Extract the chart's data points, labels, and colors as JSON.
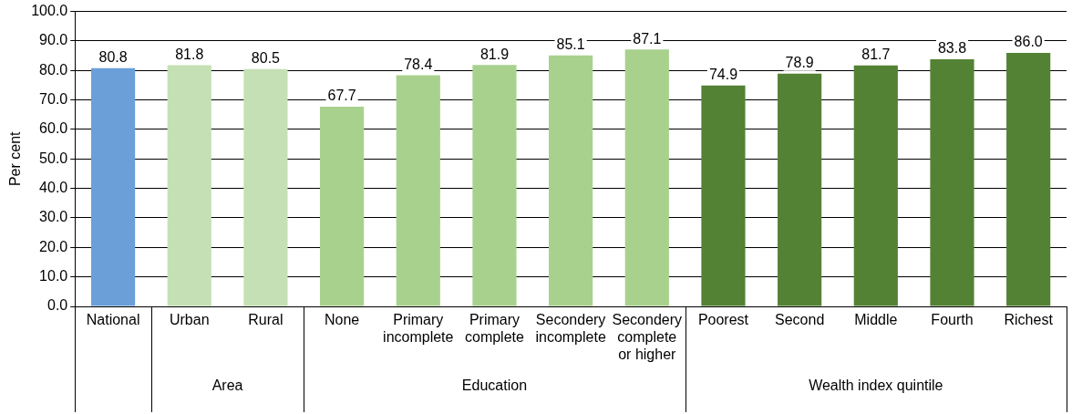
{
  "chart_data": {
    "type": "bar",
    "ylabel": "Per cent",
    "categories": [
      "National",
      "Urban",
      "Rural",
      "None",
      "Primary incomplete",
      "Primary complete",
      "Secondery incomplete",
      "Secondery complete or higher",
      "Poorest",
      "Second",
      "Middle",
      "Fourth",
      "Richest"
    ],
    "values": [
      80.8,
      81.8,
      80.5,
      67.7,
      78.4,
      81.9,
      85.1,
      87.1,
      74.9,
      78.9,
      81.7,
      83.8,
      86.0
    ],
    "value_labels": [
      "80.8",
      "81.8",
      "80.5",
      "67.7",
      "78.4",
      "81.9",
      "85.1",
      "87.1",
      "74.9",
      "78.9",
      "81.7",
      "83.8",
      "86.0"
    ],
    "colors": [
      "#6a9fd8",
      "#c5e0b4",
      "#c5e0b4",
      "#a9d18e",
      "#a9d18e",
      "#a9d18e",
      "#a9d18e",
      "#a9d18e",
      "#548235",
      "#548235",
      "#548235",
      "#548235",
      "#548235"
    ],
    "ylim": [
      0,
      100
    ],
    "yticks": [
      {
        "value": 0,
        "label": "0.0"
      },
      {
        "value": 10,
        "label": "10.0"
      },
      {
        "value": 20,
        "label": "20.0"
      },
      {
        "value": 30,
        "label": "30.0"
      },
      {
        "value": 40,
        "label": "40.0"
      },
      {
        "value": 50,
        "label": "50.0"
      },
      {
        "value": 60,
        "label": "60.0"
      },
      {
        "value": 70,
        "label": "70.0"
      },
      {
        "value": 80,
        "label": "80.0"
      },
      {
        "value": 90,
        "label": "90.0"
      },
      {
        "value": 100,
        "label": "100.0"
      }
    ],
    "grid": "y",
    "legend": false,
    "annotations": [
      "Area",
      "Education",
      "Wealth index quintile"
    ]
  }
}
